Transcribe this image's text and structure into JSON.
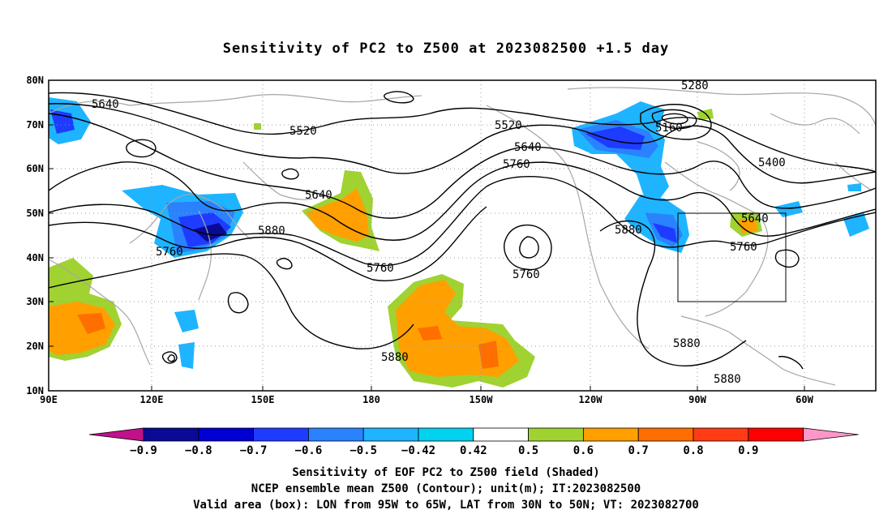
{
  "title": "Sensitivity of PC2 to Z500 at 2023082500 +1.5 day",
  "map": {
    "lat_labels": [
      "80N",
      "70N",
      "60N",
      "50N",
      "40N",
      "30N",
      "20N",
      "10N"
    ],
    "lon_labels": [
      "90E",
      "120E",
      "150E",
      "180",
      "150W",
      "120W",
      "90W",
      "60W"
    ],
    "contour_labels": [
      "5640",
      "5520",
      "5520",
      "5640",
      "5760",
      "5280",
      "5160",
      "5400",
      "5640",
      "5760",
      "5880",
      "5880",
      "5760",
      "5760",
      "5640",
      "5760",
      "5880",
      "5880",
      "5880"
    ],
    "valid_box": {
      "lon_west": "95W",
      "lon_east": "65W",
      "lat_south": "30N",
      "lat_north": "50N"
    }
  },
  "colorbar": {
    "labels": [
      "-0.9",
      "-0.8",
      "-0.7",
      "-0.6",
      "-0.5",
      "-0.42",
      "0.42",
      "0.5",
      "0.6",
      "0.7",
      "0.8",
      "0.9"
    ],
    "colors": [
      "#c0108a",
      "#0a0a96",
      "#0000d2",
      "#1e3cff",
      "#2a82ff",
      "#1fb4ff",
      "#00d2f0",
      "#ffffff",
      "#a0d232",
      "#ffa000",
      "#ff6e00",
      "#ff3c14",
      "#ff0000",
      "#ff96c8"
    ]
  },
  "caption": {
    "line1": "Sensitivity of EOF PC2 to Z500 field (Shaded)",
    "line2": "NCEP ensemble mean Z500 (Contour); unit(m); IT:2023082500",
    "line3": "Valid area (box): LON from 95W to 65W, LAT from 30N to 50N; VT: 2023082700"
  },
  "colors": {
    "contour": "#000000",
    "coastline": "#a6a6a6",
    "grid": "#999999"
  }
}
